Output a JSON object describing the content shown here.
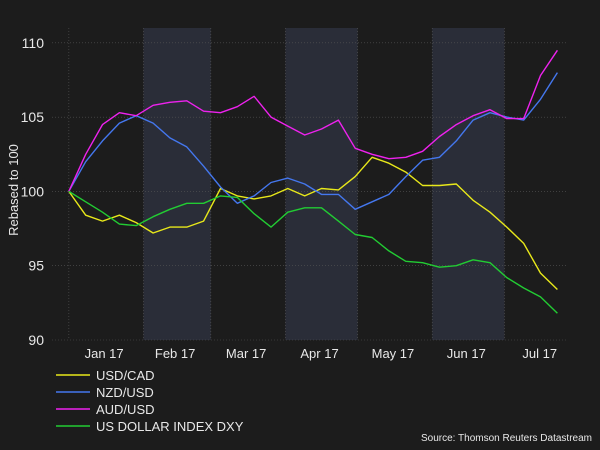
{
  "chart_data": {
    "type": "line",
    "title": "",
    "xlabel": "",
    "ylabel": "Rebased to 100",
    "ylim": [
      90,
      111
    ],
    "yticks": [
      90,
      95,
      100,
      105,
      110
    ],
    "x_tick_labels": [
      "Jan 17",
      "Feb 17",
      "Mar 17",
      "Apr 17",
      "May 17",
      "Jun 17",
      "Jul 17"
    ],
    "shaded_months": [
      "Feb 17",
      "Apr 17",
      "Jun 17"
    ],
    "grid": true,
    "legend_position": "bottom-left",
    "source": "Source: Thomson Reuters Datastream",
    "x": [
      "2017-01-01",
      "2017-01-08",
      "2017-01-15",
      "2017-01-22",
      "2017-01-29",
      "2017-02-05",
      "2017-02-12",
      "2017-02-19",
      "2017-02-26",
      "2017-03-05",
      "2017-03-12",
      "2017-03-19",
      "2017-03-26",
      "2017-04-02",
      "2017-04-09",
      "2017-04-16",
      "2017-04-23",
      "2017-04-30",
      "2017-05-07",
      "2017-05-14",
      "2017-05-21",
      "2017-05-28",
      "2017-06-04",
      "2017-06-11",
      "2017-06-18",
      "2017-06-25",
      "2017-07-02",
      "2017-07-09",
      "2017-07-16",
      "2017-07-23"
    ],
    "series": [
      {
        "name": "USD/CAD",
        "color": "#e8e81a",
        "values": [
          100.0,
          98.4,
          98.0,
          98.4,
          97.9,
          97.2,
          97.6,
          97.6,
          98.0,
          100.2,
          99.7,
          99.5,
          99.7,
          100.2,
          99.7,
          100.2,
          100.1,
          101.0,
          102.3,
          101.9,
          101.3,
          100.4,
          100.4,
          100.5,
          99.4,
          98.6,
          97.6,
          96.5,
          94.5,
          93.4
        ]
      },
      {
        "name": "NZD/USD",
        "color": "#4477ee",
        "values": [
          100.0,
          102.0,
          103.4,
          104.6,
          105.1,
          104.6,
          103.6,
          103.0,
          101.7,
          100.3,
          99.2,
          99.7,
          100.6,
          100.9,
          100.5,
          99.8,
          99.8,
          98.8,
          99.3,
          99.8,
          101.0,
          102.1,
          102.3,
          103.4,
          104.8,
          105.3,
          105.0,
          104.8,
          106.2,
          108.0
        ]
      },
      {
        "name": "AUD/USD",
        "color": "#ee22ee",
        "values": [
          100.0,
          102.5,
          104.5,
          105.3,
          105.1,
          105.8,
          106.0,
          106.1,
          105.4,
          105.3,
          105.7,
          106.4,
          105.0,
          104.4,
          103.8,
          104.2,
          104.8,
          102.9,
          102.5,
          102.2,
          102.3,
          102.7,
          103.7,
          104.5,
          105.1,
          105.5,
          104.9,
          104.9,
          107.8,
          109.5
        ]
      },
      {
        "name": "US DOLLAR INDEX DXY",
        "color": "#22cc33",
        "values": [
          100.0,
          99.3,
          98.6,
          97.8,
          97.7,
          98.3,
          98.8,
          99.2,
          99.2,
          99.7,
          99.6,
          98.5,
          97.6,
          98.6,
          98.9,
          98.9,
          98.0,
          97.1,
          96.9,
          96.0,
          95.3,
          95.2,
          94.9,
          95.0,
          95.4,
          95.2,
          94.2,
          93.5,
          92.9,
          91.8
        ]
      }
    ]
  }
}
